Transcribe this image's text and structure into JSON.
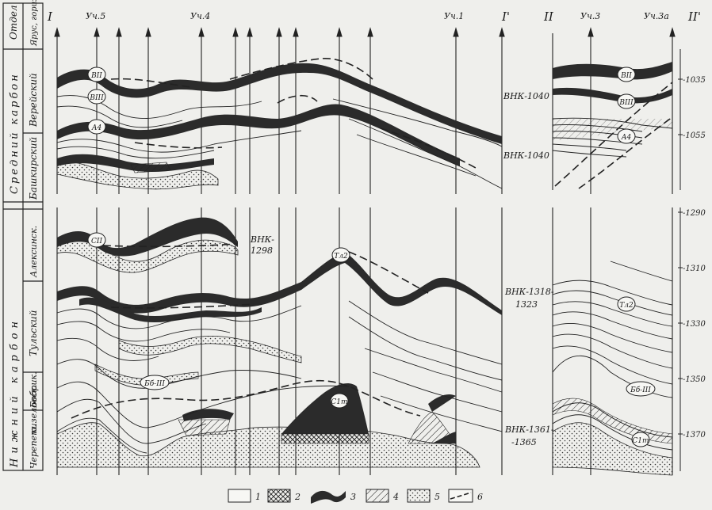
{
  "section_labels": {
    "I_left": "I",
    "I_right": "I'",
    "II_left": "II",
    "II_right": "II'"
  },
  "wells": {
    "w5": "Уч.5",
    "w4": "Уч.4",
    "w1": "Уч.1",
    "w3": "Уч.3",
    "w3a": "Уч.3а"
  },
  "column_headers": {
    "otdel": "Отдел",
    "yarus": "Ярус, горизонт"
  },
  "strat": {
    "sredniy_karbon": "Средний  карбон",
    "nizhniy_karbon": "Нижний  карбон",
    "vereyskiy": "Верейский",
    "bashkirskiy": "Башкирский",
    "aleksinsk": "Алексинск.",
    "tulskiy": "Тульский",
    "bobrik": "Бобрик.",
    "kizelovsk": "кизеловск.",
    "cherepet": "Черепет."
  },
  "horizon_markers": {
    "vII": "ВII",
    "vIII": "ВIII",
    "a4": "А4",
    "vII_r": "ВII",
    "vIII_r": "ВIII",
    "a4_r": "А4",
    "cII": "СII",
    "tl2": "Тл2",
    "bb3": "Бб-III",
    "c1t": "С1т",
    "tl2_r": "Тл2",
    "bb3_r": "Бб-III",
    "c1t_r": "С1т"
  },
  "vnk": {
    "v1040_a": "ВНК-1040",
    "v1040_b": "ВНК-1040",
    "v1298_a": "ВНК-",
    "v1298_b": "1298",
    "v1318_a": "ВНК-1318-",
    "v1318_b": "1323",
    "v1361_a": "ВНК-1361-",
    "v1361_b": "-1365"
  },
  "depth_ticks_top": [
    "-1035",
    "-1055"
  ],
  "depth_ticks_bottom": [
    "-1290",
    "-1310",
    "-1330",
    "-1350",
    "-1370"
  ],
  "legend": [
    "1",
    "2",
    "3",
    "4",
    "5",
    "6"
  ]
}
